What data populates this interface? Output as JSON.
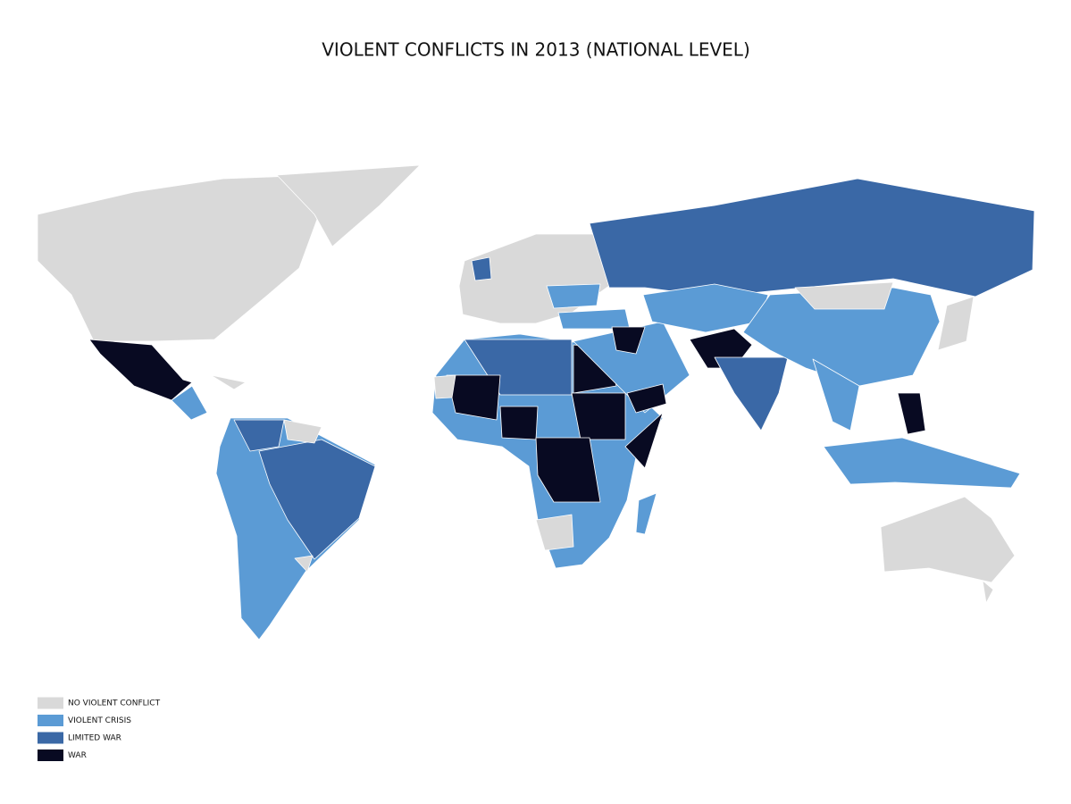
{
  "title": "VIOLENT CONFLICTS IN 2013 (NATIONAL LEVEL)",
  "legend": [
    {
      "label": "NO VIOLENT CONFLICT",
      "color": "#d9d9d9"
    },
    {
      "label": "VIOLENT CRISIS",
      "color": "#5b9bd5"
    },
    {
      "label": "LIMITED WAR",
      "color": "#3a68a6"
    },
    {
      "label": "WAR",
      "color": "#080a22"
    }
  ]
}
